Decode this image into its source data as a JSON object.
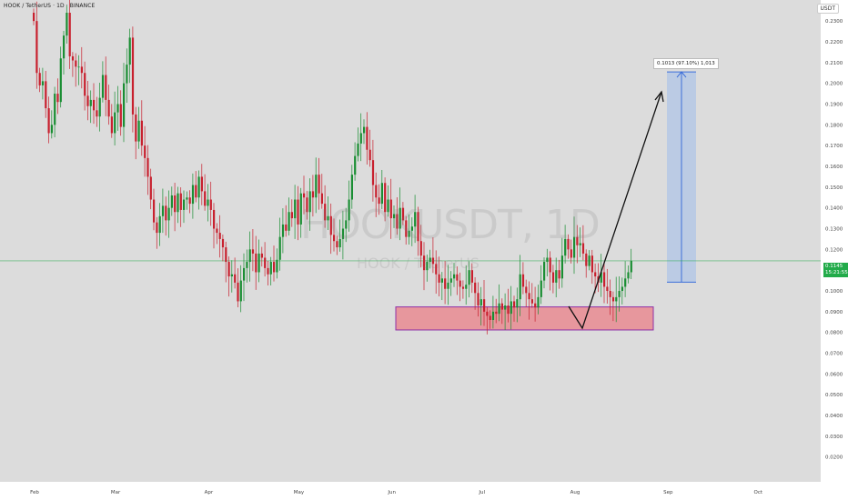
{
  "header": {
    "title": "HOOK / TetherUS · 1D · BINANCE"
  },
  "unit": "USDT",
  "watermark": {
    "symbol": "HOOKUSDT, 1D",
    "name": "HOOK / TetherUS"
  },
  "current_price": {
    "price": "0.1145",
    "countdown": "15:21:55"
  },
  "measure": {
    "label": "0.1013 (97.10%) 1,013"
  },
  "colors": {
    "background": "#dcdcdc",
    "up": "#1a8e33",
    "down": "#c8202e",
    "price_line": "#22ab4a",
    "target_fill": "#b3c7e6",
    "target_border": "#3d6fd9",
    "zone_fill": "#e88f96",
    "zone_border": "#8f2fa6"
  },
  "chart_data": {
    "type": "candlestick",
    "y_ticks": [
      "0.2300",
      "0.2200",
      "0.2100",
      "0.2000",
      "0.1900",
      "0.1800",
      "0.1700",
      "0.1600",
      "0.1500",
      "0.1400",
      "0.1300",
      "0.1200",
      "0.1100",
      "0.1000",
      "0.0900",
      "0.0800",
      "0.0700",
      "0.0600",
      "0.0500",
      "0.0400",
      "0.0300",
      "0.0200"
    ],
    "x_ticks": [
      "Feb",
      "Mar",
      "Apr",
      "May",
      "Jun",
      "Jul",
      "Aug",
      "Sep",
      "Oct"
    ],
    "ylim": [
      0.0155,
      0.2375
    ],
    "last_price": 0.1145,
    "support_zone": [
      0.0812,
      0.0923
    ],
    "target_box": [
      0.1042,
      0.2055
    ],
    "closes": [
      0.23,
      0.205,
      0.199,
      0.201,
      0.188,
      0.176,
      0.18,
      0.195,
      0.191,
      0.212,
      0.223,
      0.234,
      0.213,
      0.211,
      0.208,
      0.208,
      0.205,
      0.194,
      0.189,
      0.192,
      0.187,
      0.184,
      0.193,
      0.204,
      0.192,
      0.184,
      0.176,
      0.186,
      0.19,
      0.179,
      0.2,
      0.209,
      0.222,
      0.185,
      0.172,
      0.182,
      0.17,
      0.164,
      0.155,
      0.144,
      0.133,
      0.128,
      0.136,
      0.141,
      0.134,
      0.14,
      0.146,
      0.138,
      0.147,
      0.139,
      0.144,
      0.145,
      0.142,
      0.151,
      0.145,
      0.155,
      0.148,
      0.141,
      0.144,
      0.139,
      0.13,
      0.128,
      0.125,
      0.121,
      0.114,
      0.107,
      0.108,
      0.104,
      0.095,
      0.105,
      0.111,
      0.114,
      0.12,
      0.118,
      0.109,
      0.118,
      0.116,
      0.111,
      0.108,
      0.114,
      0.109,
      0.115,
      0.126,
      0.132,
      0.129,
      0.138,
      0.135,
      0.144,
      0.132,
      0.147,
      0.145,
      0.138,
      0.148,
      0.145,
      0.156,
      0.147,
      0.142,
      0.134,
      0.136,
      0.127,
      0.124,
      0.121,
      0.125,
      0.13,
      0.134,
      0.144,
      0.156,
      0.165,
      0.171,
      0.176,
      0.179,
      0.168,
      0.163,
      0.151,
      0.145,
      0.142,
      0.152,
      0.138,
      0.144,
      0.135,
      0.137,
      0.13,
      0.14,
      0.134,
      0.126,
      0.129,
      0.131,
      0.138,
      0.124,
      0.117,
      0.11,
      0.114,
      0.116,
      0.113,
      0.108,
      0.104,
      0.106,
      0.101,
      0.104,
      0.106,
      0.108,
      0.105,
      0.102,
      0.101,
      0.103,
      0.11,
      0.104,
      0.099,
      0.093,
      0.096,
      0.09,
      0.088,
      0.086,
      0.09,
      0.089,
      0.094,
      0.091,
      0.093,
      0.089,
      0.095,
      0.092,
      0.096,
      0.108,
      0.102,
      0.099,
      0.096,
      0.094,
      0.092,
      0.097,
      0.105,
      0.114,
      0.116,
      0.109,
      0.104,
      0.11,
      0.106,
      0.117,
      0.125,
      0.12,
      0.116,
      0.126,
      0.122,
      0.123,
      0.118,
      0.112,
      0.117,
      0.109,
      0.107,
      0.104,
      0.109,
      0.102,
      0.1,
      0.097,
      0.095,
      0.097,
      0.1,
      0.102,
      0.106,
      0.109,
      0.1145
    ],
    "total_bars": 245
  }
}
